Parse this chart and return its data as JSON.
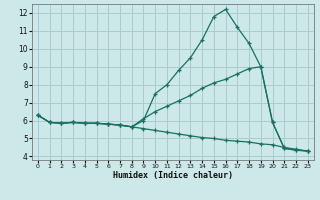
{
  "xlabel": "Humidex (Indice chaleur)",
  "xlim": [
    -0.5,
    23.5
  ],
  "ylim": [
    3.8,
    12.5
  ],
  "yticks": [
    4,
    5,
    6,
    7,
    8,
    9,
    10,
    11,
    12
  ],
  "xticks": [
    0,
    1,
    2,
    3,
    4,
    5,
    6,
    7,
    8,
    9,
    10,
    11,
    12,
    13,
    14,
    15,
    16,
    17,
    18,
    19,
    20,
    21,
    22,
    23
  ],
  "bg_color": "#cce8e8",
  "grid_color": "#aacccc",
  "line_color": "#1a7060",
  "lines": [
    {
      "x": [
        0,
        1,
        2,
        3,
        4,
        5,
        6,
        7,
        8,
        9,
        10,
        11,
        12,
        13,
        14,
        15,
        16,
        17,
        18,
        19,
        20,
        21,
        22,
        23
      ],
      "y": [
        6.3,
        5.9,
        5.85,
        5.9,
        5.85,
        5.85,
        5.8,
        5.75,
        5.65,
        6.0,
        7.5,
        8.0,
        8.8,
        9.5,
        10.5,
        11.8,
        12.2,
        11.2,
        10.3,
        9.0,
        5.9,
        4.45,
        4.35,
        4.3
      ]
    },
    {
      "x": [
        0,
        1,
        2,
        3,
        4,
        5,
        6,
        7,
        8,
        9,
        10,
        11,
        12,
        13,
        14,
        15,
        16,
        17,
        18,
        19,
        20,
        21,
        22,
        23
      ],
      "y": [
        6.3,
        5.9,
        5.85,
        5.9,
        5.85,
        5.85,
        5.8,
        5.75,
        5.65,
        6.1,
        6.5,
        6.8,
        7.1,
        7.4,
        7.8,
        8.1,
        8.3,
        8.6,
        8.9,
        9.0,
        5.9,
        4.45,
        4.35,
        4.3
      ]
    },
    {
      "x": [
        0,
        1,
        2,
        3,
        4,
        5,
        6,
        7,
        8,
        9,
        10,
        11,
        12,
        13,
        14,
        15,
        16,
        17,
        18,
        19,
        20,
        21,
        22,
        23
      ],
      "y": [
        6.3,
        5.9,
        5.85,
        5.9,
        5.85,
        5.85,
        5.8,
        5.75,
        5.65,
        5.55,
        5.45,
        5.35,
        5.25,
        5.15,
        5.05,
        5.0,
        4.9,
        4.85,
        4.8,
        4.7,
        4.65,
        4.5,
        4.4,
        4.3
      ]
    }
  ]
}
